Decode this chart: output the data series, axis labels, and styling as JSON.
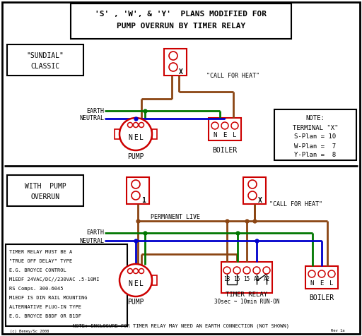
{
  "title_line1": "'S' , 'W', & 'Y'  PLANS MODIFIED FOR",
  "title_line2": "PUMP OVERRUN BY TIMER RELAY",
  "bg_color": "#ffffff",
  "red": "#cc0000",
  "brown": "#8B4513",
  "green": "#007700",
  "blue": "#0000cc",
  "black": "#000000",
  "sundial_label": [
    "\"SUNDIAL\"",
    "CLASSIC"
  ],
  "pump_overrun_label": [
    "WITH  PUMP",
    "OVERRUN"
  ],
  "call_heat_top": "\"CALL FOR HEAT\"",
  "call_heat_bot": "\"CALL FOR HEAT\"",
  "perm_live": "PERMANENT LIVE",
  "earth": "EARTH",
  "neutral": "NEUTRAL",
  "pump_label": "PUMP",
  "boiler_label": "BOILER",
  "timer_label": "TIMER RELAY",
  "timer_sub": "30sec ~ 10min RUN-ON",
  "note_box": [
    "NOTE:",
    "TERMINAL \"X\"",
    "S-Plan = 10",
    "W-Plan =  7",
    "Y-Plan =  8"
  ],
  "timer_note": [
    "TIMER RELAY MUST BE A",
    "\"TRUE OFF DELAY\" TYPE",
    "E.G. BROYCE CONTROL",
    "M1EDF 24VAC/DC//230VAC .5-10MI",
    "RS Comps. 300-6045",
    "M1EDF IS DIN RAIL MOUNTING",
    "ALTERNATIVE PLUG-IN TYPE",
    "E.G. BROYCE B8DF OR B1DF"
  ],
  "bottom_note": "NOTE: ENCLOSURE FOR TIMER RELAY MAY NEED AN EARTH CONNECTION (NOT SHOWN)",
  "copy_left": "(c) Beney/Sc 2008",
  "copy_right": "Rev 1a"
}
